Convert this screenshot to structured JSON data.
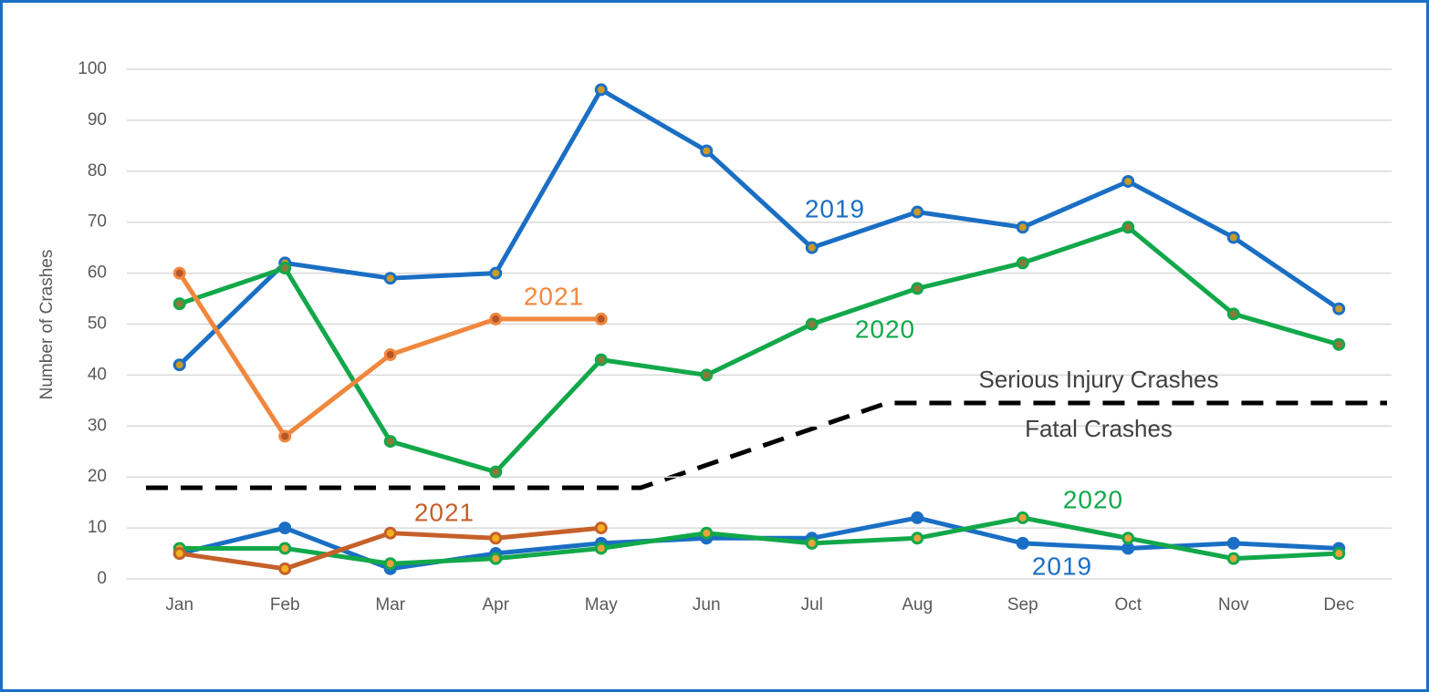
{
  "chart_data": {
    "type": "line",
    "ylabel": "Number of Crashes",
    "categories": [
      "Jan",
      "Feb",
      "Mar",
      "Apr",
      "May",
      "Jun",
      "Jul",
      "Aug",
      "Sep",
      "Oct",
      "Nov",
      "Dec"
    ],
    "ylim": [
      0,
      100
    ],
    "yticks": [
      0,
      10,
      20,
      30,
      40,
      50,
      60,
      70,
      80,
      90,
      100
    ],
    "grid": true,
    "groups": [
      {
        "label": "Serious Injury Crashes",
        "series": [
          {
            "name": "2019",
            "color": "#1a6fc4",
            "marker_color": "#c89b2a",
            "values": [
              42,
              62,
              59,
              60,
              96,
              84,
              65,
              72,
              69,
              78,
              67,
              53
            ]
          },
          {
            "name": "2020",
            "color": "#12a84a",
            "marker_color": "#8a7a3a",
            "values": [
              54,
              61,
              27,
              21,
              43,
              40,
              50,
              57,
              62,
              69,
              52,
              46
            ]
          },
          {
            "name": "2021",
            "color": "#f0873e",
            "marker_color": "#b5562a",
            "values": [
              60,
              28,
              44,
              51,
              51,
              null,
              null,
              null,
              null,
              null,
              null,
              null
            ]
          }
        ]
      },
      {
        "label": "Fatal Crashes",
        "series": [
          {
            "name": "2019",
            "color": "#1a6fc4",
            "marker_color": "#1a6fc4",
            "values": [
              5,
              10,
              2,
              5,
              7,
              8,
              8,
              12,
              7,
              6,
              7,
              6
            ]
          },
          {
            "name": "2020",
            "color": "#12a84a",
            "marker_color": "#e8a33a",
            "values": [
              6,
              6,
              3,
              4,
              6,
              9,
              7,
              8,
              12,
              8,
              4,
              5
            ]
          },
          {
            "name": "2021",
            "color": "#c6602a",
            "marker_color": "#f2b21c",
            "values": [
              5,
              2,
              9,
              8,
              10,
              null,
              null,
              null,
              null,
              null,
              null,
              null
            ]
          }
        ]
      }
    ]
  }
}
